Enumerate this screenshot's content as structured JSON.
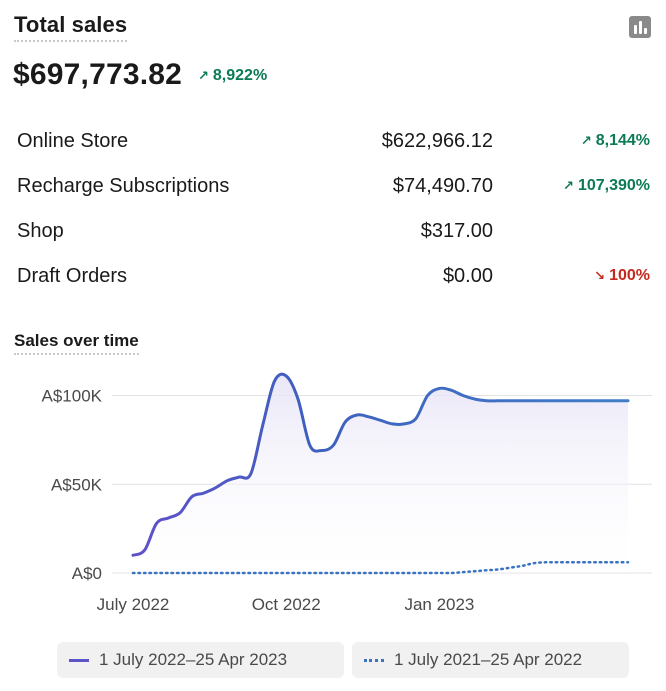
{
  "header": {
    "title": "Total sales",
    "icon": "bar-chart-icon"
  },
  "summary": {
    "total": "$697,773.82",
    "change": "8,922%",
    "change_direction": "up"
  },
  "channels": [
    {
      "name": "Online Store",
      "amount": "$622,966.12",
      "change": "8,144%",
      "direction": "up"
    },
    {
      "name": "Recharge Subscriptions",
      "amount": "$74,490.70",
      "change": "107,390%",
      "direction": "up"
    },
    {
      "name": "Shop",
      "amount": "$317.00",
      "change": "",
      "direction": "none"
    },
    {
      "name": "Draft Orders",
      "amount": "$0.00",
      "change": "100%",
      "direction": "down"
    }
  ],
  "colors": {
    "positive": "#0b7a55",
    "negative": "#c6281f",
    "current_series_start": "#6151c9",
    "current_series_end": "#3f7ec7",
    "previous_series": "#3a73c2"
  },
  "chart_data": {
    "type": "line",
    "title": "Sales over time",
    "xlabel": "",
    "ylabel": "",
    "ylim": [
      0,
      120000
    ],
    "y_ticks": [
      {
        "value": 0,
        "label": "A$0"
      },
      {
        "value": 50000,
        "label": "A$50K"
      },
      {
        "value": 100000,
        "label": "A$100K"
      }
    ],
    "x_ticks": [
      {
        "x": 0,
        "label": "July 2022"
      },
      {
        "x": 13,
        "label": "Oct 2022"
      },
      {
        "x": 26,
        "label": "Jan 2023"
      }
    ],
    "grid": true,
    "legend_position": "bottom",
    "series": [
      {
        "name": "1 July 2022–25 Apr 2023",
        "style": "solid",
        "x": [
          0,
          1,
          2,
          3,
          4,
          5,
          6,
          7,
          8,
          9,
          10,
          11,
          12,
          13,
          14,
          15,
          16,
          17,
          18,
          19,
          20,
          21,
          22,
          23,
          24,
          25,
          26,
          27,
          28,
          29,
          30,
          31,
          32,
          33,
          34,
          35,
          36,
          37,
          38,
          39,
          40,
          41,
          42
        ],
        "values": [
          10000,
          13000,
          28000,
          31000,
          34000,
          43000,
          45000,
          48000,
          52000,
          54000,
          56000,
          83000,
          108000,
          111000,
          98000,
          72000,
          69000,
          72000,
          85000,
          89000,
          88000,
          86000,
          84000,
          84000,
          87000,
          100000,
          104000,
          103000,
          100000,
          98000,
          97000,
          97000,
          97000,
          97000,
          97000,
          97000,
          97000,
          97000,
          97000,
          97000,
          97000,
          97000,
          97000
        ]
      },
      {
        "name": "1 July 2021–25 Apr 2022",
        "style": "dotted",
        "x": [
          0,
          1,
          2,
          3,
          4,
          5,
          6,
          7,
          8,
          9,
          10,
          11,
          12,
          13,
          14,
          15,
          16,
          17,
          18,
          19,
          20,
          21,
          22,
          23,
          24,
          25,
          26,
          27,
          28,
          29,
          30,
          31,
          32,
          33,
          34,
          35,
          36,
          37,
          38,
          39,
          40,
          41,
          42
        ],
        "values": [
          0,
          0,
          0,
          0,
          0,
          0,
          0,
          0,
          0,
          0,
          0,
          0,
          0,
          0,
          0,
          0,
          0,
          0,
          0,
          0,
          0,
          0,
          0,
          0,
          0,
          0,
          0,
          0,
          500,
          1000,
          1500,
          2000,
          3000,
          4000,
          5500,
          6000,
          6000,
          6000,
          6000,
          6000,
          6000,
          6000,
          6000
        ]
      }
    ]
  }
}
